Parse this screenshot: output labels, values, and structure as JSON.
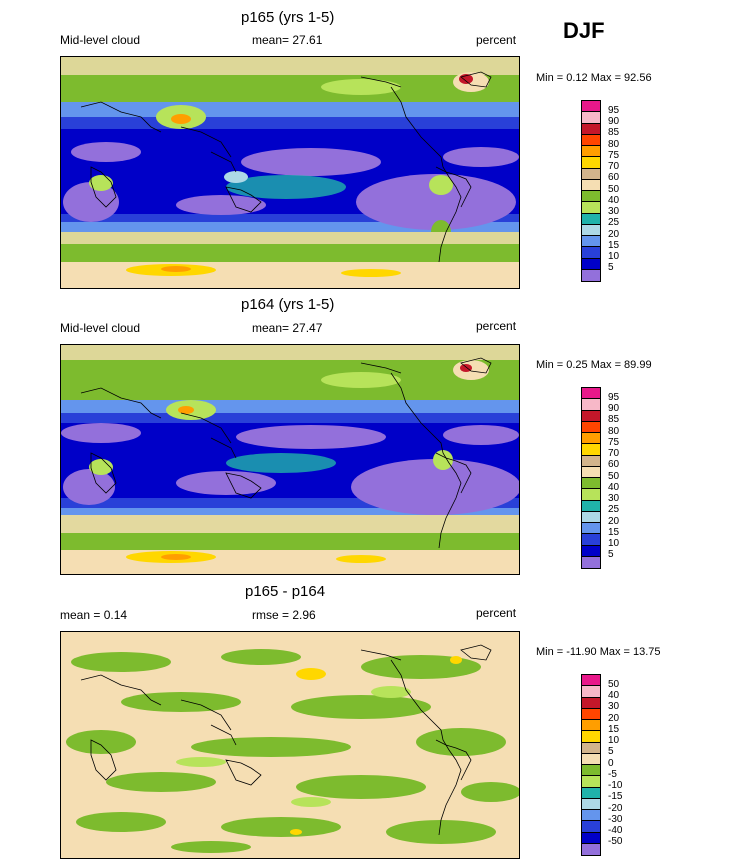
{
  "season": "DJF",
  "panels": [
    {
      "title": "p165 (yrs 1-5)",
      "left_label": "Mid-level cloud",
      "center_label": "mean=  27.61",
      "right_label": "percent",
      "minmax": "Min =   0.12 Max =  92.56",
      "ticks": [
        "95",
        "90",
        "85",
        "80",
        "75",
        "70",
        "60",
        "50",
        "40",
        "30",
        "25",
        "20",
        "15",
        "10",
        "5"
      ]
    },
    {
      "title": "p164 (yrs 1-5)",
      "left_label": "Mid-level cloud",
      "center_label": "mean=  27.47",
      "right_label": "percent",
      "minmax": "Min =   0.25 Max =  89.99",
      "ticks": [
        "95",
        "90",
        "85",
        "80",
        "75",
        "70",
        "60",
        "50",
        "40",
        "30",
        "25",
        "20",
        "15",
        "10",
        "5"
      ]
    },
    {
      "title": "p165 - p164",
      "left_label": "mean =   0.14",
      "center_label": "rmse =   2.96",
      "right_label": "percent",
      "minmax": "Min = -11.90 Max =  13.75",
      "ticks": [
        "50",
        "40",
        "30",
        "20",
        "15",
        "10",
        "5",
        "0",
        "-5",
        "-10",
        "-15",
        "-20",
        "-30",
        "-40",
        "-50"
      ]
    }
  ],
  "colorbar_colors": [
    "#e8188a",
    "#f7b8c8",
    "#c4172a",
    "#ff4500",
    "#ff9e00",
    "#ffd700",
    "#d2b48c",
    "#f5deb3",
    "#7dbb2e",
    "#b7e35a",
    "#20b2aa",
    "#add8e6",
    "#6495ed",
    "#2940d8",
    "#0000c8",
    "#9370db"
  ],
  "map_colors": {
    "ocean_low": "#9370db",
    "deep_blue": "#0000c8",
    "blue": "#2940d8",
    "mid_blue": "#6495ed",
    "light_blue": "#add8e6",
    "teal": "#20b2aa",
    "green": "#7dbb2e",
    "light_green": "#b7e35a",
    "tan": "#f5deb3",
    "orange": "#ff9e00",
    "yellow": "#ffd700",
    "red": "#c4172a"
  }
}
